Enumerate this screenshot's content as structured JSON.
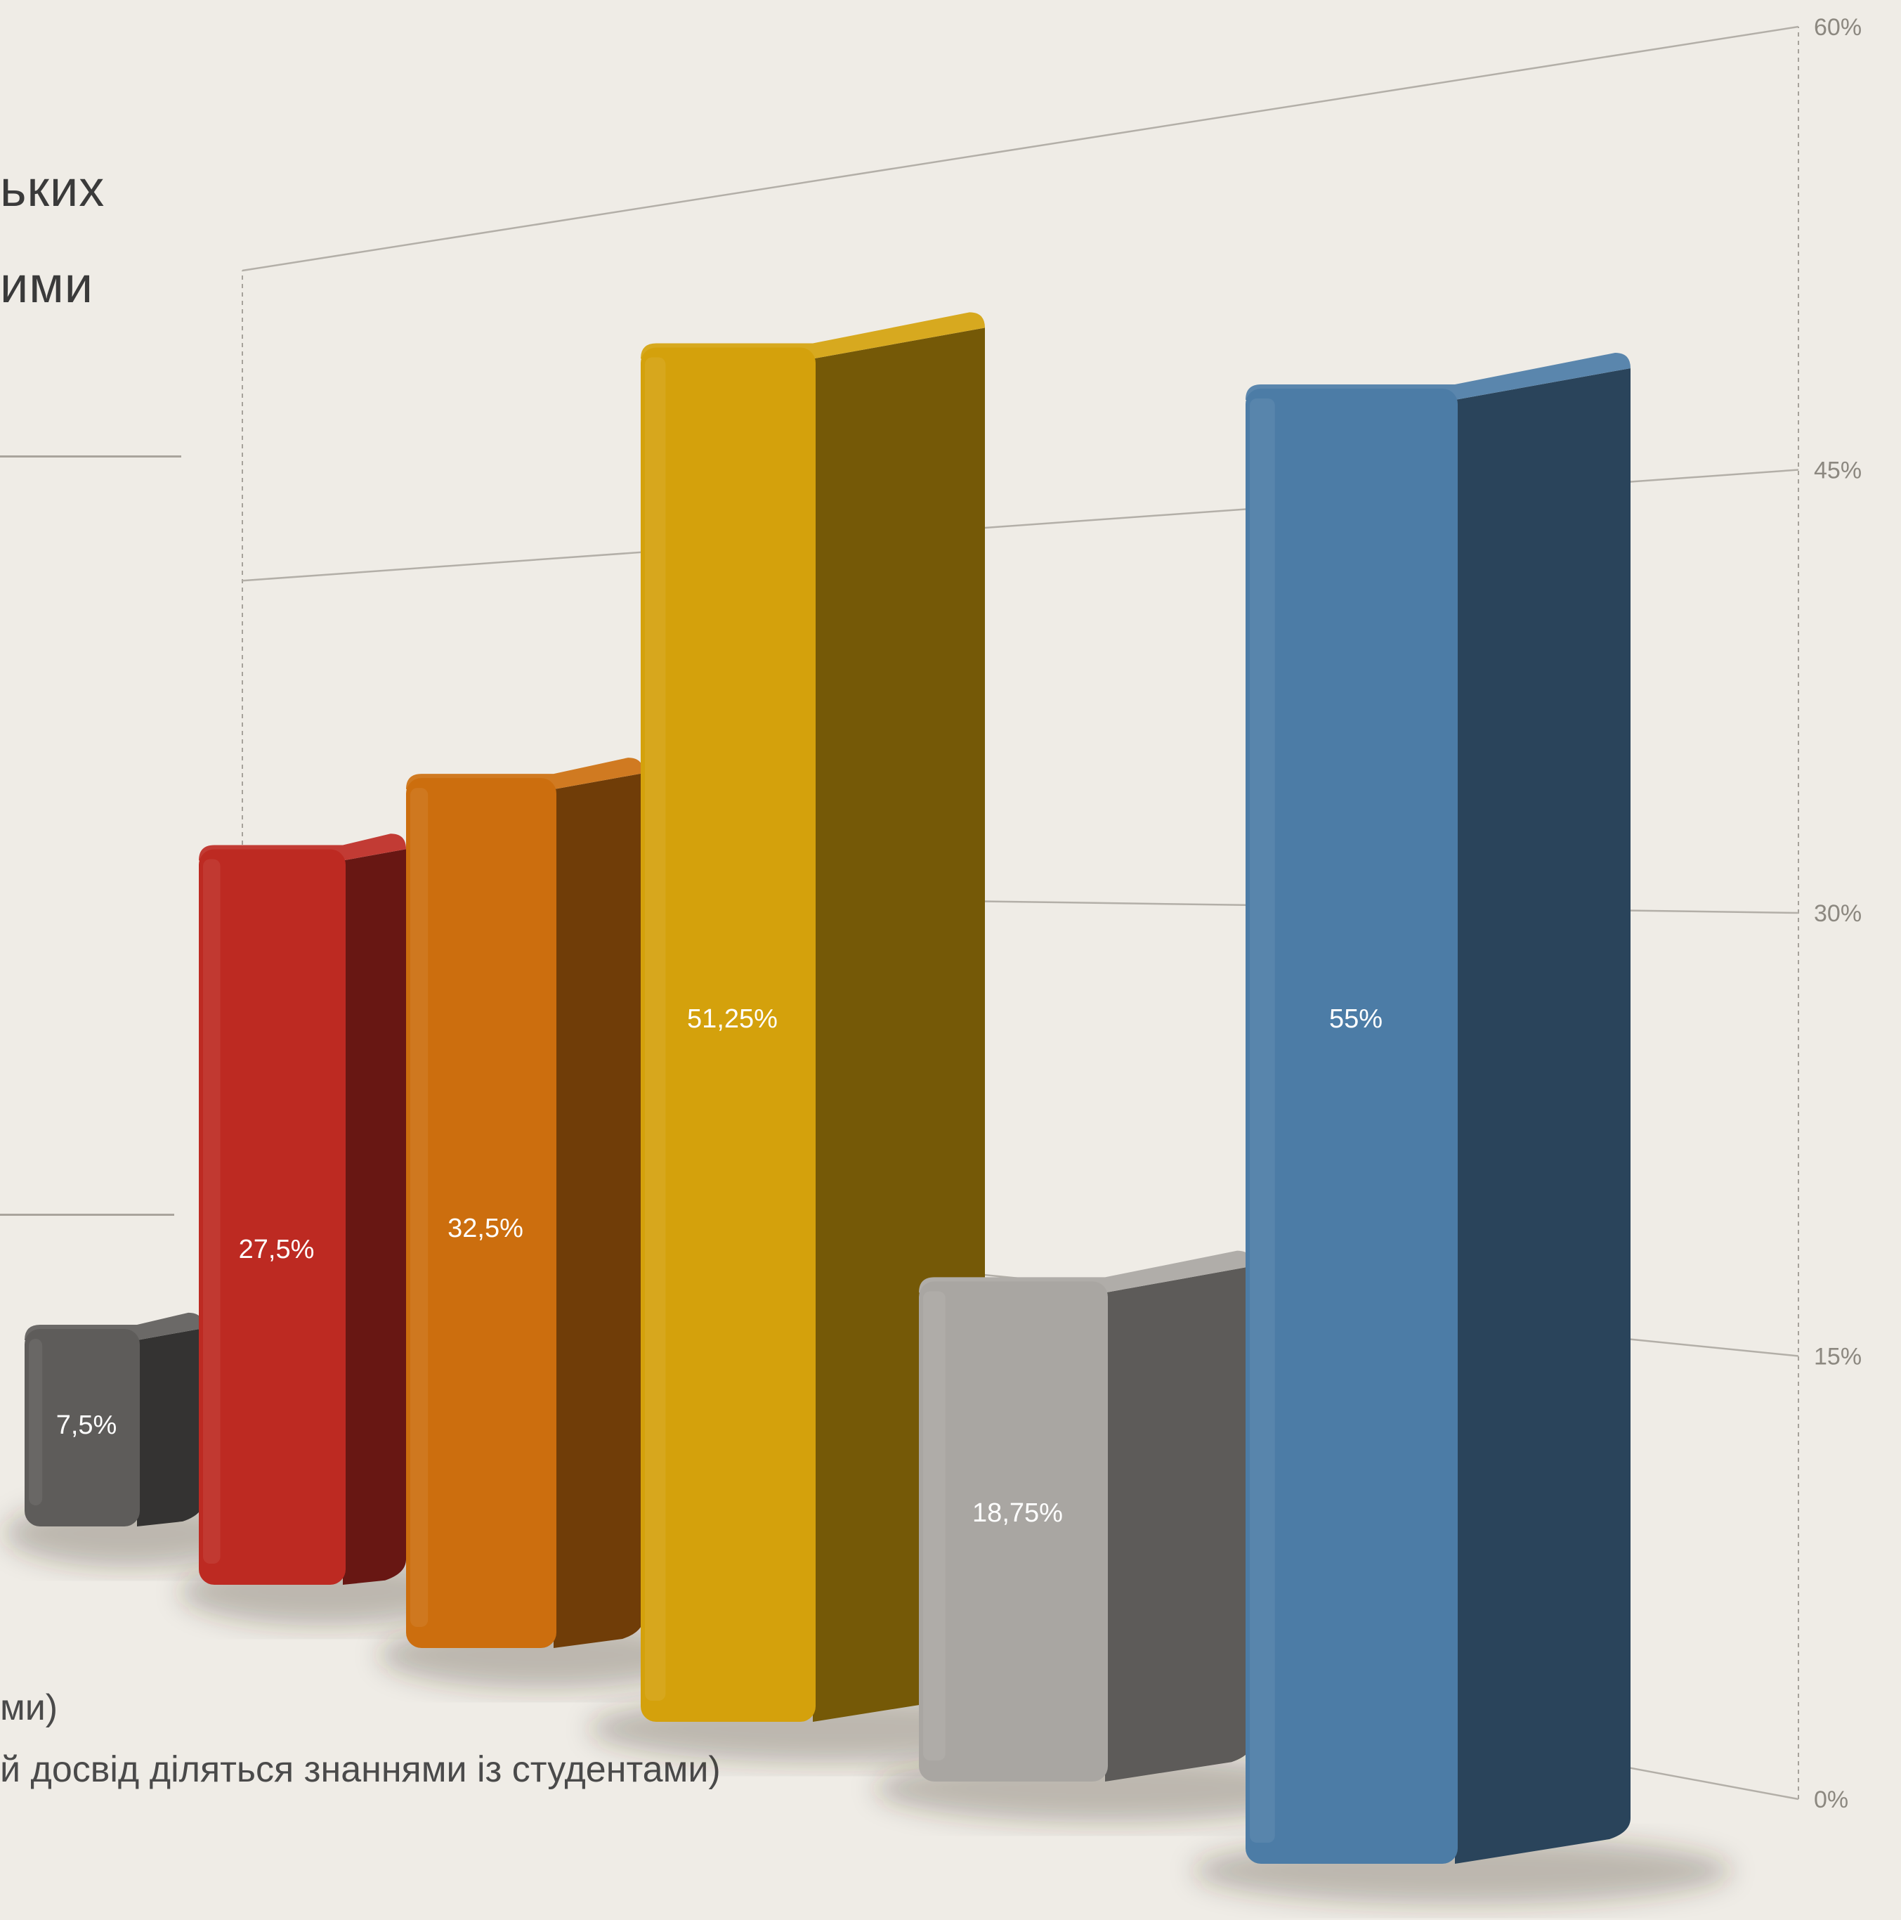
{
  "title_fragments": [
    "ьких",
    "ими"
  ],
  "legend_fragments": [
    "ми)",
    "й досвід діляться знаннями із студентами)"
  ],
  "chart_data": {
    "type": "bar",
    "title": "",
    "xlabel": "",
    "ylabel": "",
    "ylim": [
      0,
      60
    ],
    "y_ticks": [
      "0%",
      "15%",
      "30%",
      "45%",
      "60%"
    ],
    "values": [
      7.5,
      27.5,
      32.5,
      51.25,
      18.75,
      55
    ],
    "data_labels": [
      "7,5%",
      "27,5%",
      "32,5%",
      "51,25%",
      "18,75%",
      "55%"
    ],
    "colors": [
      "#5e5c5a",
      "#bd2a22",
      "#cc6e0e",
      "#d4a10c",
      "#a9a6a2",
      "#4c7ca6"
    ],
    "grid": true,
    "projection": "3d-perspective"
  }
}
